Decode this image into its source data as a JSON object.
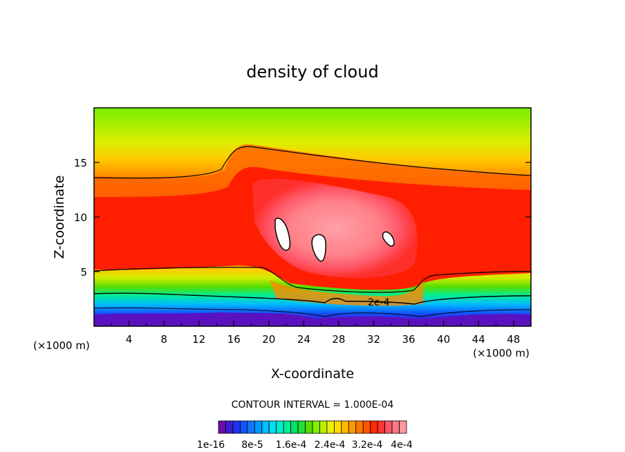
{
  "chart_data": {
    "type": "heatmap",
    "title": "density of cloud",
    "xlabel": "X-coordinate",
    "ylabel": "Z-coordinate",
    "x_unit_left": "(×1000 m)",
    "x_unit_right": "(×1000 m)",
    "xlim": [
      0,
      50
    ],
    "ylim": [
      0,
      20
    ],
    "xticks": [
      4,
      8,
      12,
      16,
      20,
      24,
      28,
      32,
      36,
      40,
      44,
      48
    ],
    "yticks": [
      5,
      10,
      15
    ],
    "contour_interval_text": "CONTOUR INTERVAL = 1.000E-04",
    "contour_label": "2e-4",
    "colorbar_labels": [
      "1e-16",
      "8e-5",
      "1.6e-4",
      "2.4e-4",
      "3.2e-4",
      "4e-4"
    ],
    "colormap": [
      "#6a0dad",
      "#3b1dcf",
      "#2233ee",
      "#1155ff",
      "#1177ff",
      "#0099ff",
      "#00bbff",
      "#00ddee",
      "#00eecc",
      "#00ee99",
      "#00e066",
      "#22dd33",
      "#55dd00",
      "#88ee00",
      "#bbee00",
      "#eeee00",
      "#ffdd00",
      "#ffbb00",
      "#ff9900",
      "#ff7700",
      "#ff5500",
      "#ff2a00",
      "#ff3333",
      "#ff5566",
      "#ff7788",
      "#ff99a0"
    ],
    "bands": [
      {
        "stop": "#ee8800",
        "z": 13.5
      },
      {
        "stop": "#ff2a00",
        "z": 12.0
      }
    ]
  }
}
